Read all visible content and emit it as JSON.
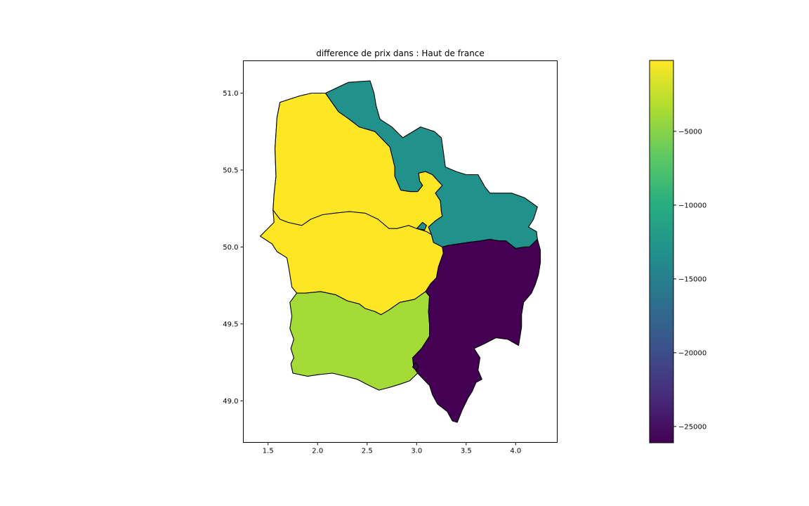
{
  "chart_data": {
    "type": "choropleth",
    "title": "difference de prix dans : Haut de france",
    "xlim": [
      1.25,
      4.42
    ],
    "ylim": [
      48.73,
      51.21
    ],
    "x_ticks": [
      "1.5",
      "2.0",
      "2.5",
      "3.0",
      "3.5",
      "4.0"
    ],
    "y_ticks": [
      "49.0",
      "49.5",
      "50.0",
      "50.5",
      "51.0"
    ],
    "colorbar": {
      "colormap": "viridis",
      "range": [
        -26100,
        -200
      ],
      "ticks": [
        "−5000",
        "−10000",
        "−15000",
        "−20000",
        "−25000"
      ],
      "tick_values": [
        -5000,
        -10000,
        -15000,
        -20000,
        -25000
      ]
    },
    "regions": [
      {
        "color": "#fde725",
        "value": -300,
        "polygon": [
          [
            2.08,
            51.0
          ],
          [
            2.21,
            50.88
          ],
          [
            2.32,
            50.83
          ],
          [
            2.42,
            50.78
          ],
          [
            2.58,
            50.75
          ],
          [
            2.73,
            50.65
          ],
          [
            2.78,
            50.52
          ],
          [
            2.78,
            50.46
          ],
          [
            2.84,
            50.37
          ],
          [
            2.93,
            50.36
          ],
          [
            3.01,
            50.36
          ],
          [
            3.06,
            50.4
          ],
          [
            3.03,
            50.43
          ],
          [
            3.02,
            50.48
          ],
          [
            3.09,
            50.49
          ],
          [
            3.16,
            50.47
          ],
          [
            3.23,
            50.42
          ],
          [
            3.26,
            50.4
          ],
          [
            3.19,
            50.35
          ],
          [
            3.24,
            50.3
          ],
          [
            3.25,
            50.23
          ],
          [
            3.26,
            50.2
          ],
          [
            3.19,
            50.17
          ],
          [
            3.12,
            50.13
          ],
          [
            3.15,
            50.08
          ],
          [
            3.17,
            50.03
          ],
          [
            3.26,
            50.0
          ],
          [
            3.27,
            49.96
          ],
          [
            3.22,
            49.87
          ],
          [
            3.2,
            49.8
          ],
          [
            3.14,
            49.76
          ],
          [
            3.09,
            49.71
          ],
          [
            2.98,
            49.66
          ],
          [
            2.83,
            49.64
          ],
          [
            2.72,
            49.59
          ],
          [
            2.64,
            49.56
          ],
          [
            2.58,
            49.58
          ],
          [
            2.48,
            49.6
          ],
          [
            2.42,
            49.63
          ],
          [
            2.3,
            49.65
          ],
          [
            2.18,
            49.69
          ],
          [
            2.03,
            49.71
          ],
          [
            1.88,
            49.7
          ],
          [
            1.79,
            49.7
          ],
          [
            1.74,
            49.74
          ],
          [
            1.71,
            49.86
          ],
          [
            1.69,
            49.93
          ],
          [
            1.59,
            49.97
          ],
          [
            1.54,
            50.02
          ],
          [
            1.42,
            50.07
          ],
          [
            1.56,
            50.16
          ],
          [
            1.55,
            50.24
          ],
          [
            1.56,
            50.34
          ],
          [
            1.58,
            50.46
          ],
          [
            1.57,
            50.64
          ],
          [
            1.59,
            50.84
          ],
          [
            1.62,
            50.94
          ],
          [
            1.81,
            50.98
          ],
          [
            1.94,
            51.0
          ]
        ]
      },
      {
        "color": "#fde725",
        "value": -300,
        "polygon": [
          [
            1.55,
            50.24
          ],
          [
            1.62,
            50.18
          ],
          [
            1.7,
            50.16
          ],
          [
            1.84,
            50.14
          ],
          [
            1.93,
            50.18
          ],
          [
            2.05,
            50.21
          ],
          [
            2.17,
            50.22
          ],
          [
            2.32,
            50.23
          ],
          [
            2.48,
            50.22
          ],
          [
            2.61,
            50.18
          ],
          [
            2.72,
            50.12
          ],
          [
            2.8,
            50.12
          ],
          [
            2.92,
            50.14
          ],
          [
            3.0,
            50.12
          ],
          [
            3.1,
            50.1
          ],
          [
            3.15,
            50.08
          ],
          [
            3.12,
            50.13
          ],
          [
            3.19,
            50.17
          ],
          [
            3.26,
            50.2
          ],
          [
            3.25,
            50.23
          ],
          [
            3.24,
            50.3
          ],
          [
            3.19,
            50.35
          ],
          [
            3.26,
            50.4
          ],
          [
            3.23,
            50.42
          ],
          [
            3.16,
            50.47
          ],
          [
            3.09,
            50.49
          ],
          [
            3.02,
            50.48
          ],
          [
            3.03,
            50.43
          ],
          [
            3.06,
            50.4
          ],
          [
            3.01,
            50.36
          ],
          [
            2.93,
            50.36
          ],
          [
            2.84,
            50.37
          ],
          [
            2.78,
            50.46
          ],
          [
            2.78,
            50.52
          ],
          [
            2.73,
            50.65
          ],
          [
            2.58,
            50.75
          ],
          [
            2.42,
            50.78
          ],
          [
            2.32,
            50.83
          ],
          [
            2.21,
            50.88
          ],
          [
            2.08,
            51.0
          ],
          [
            1.94,
            51.0
          ],
          [
            1.81,
            50.98
          ],
          [
            1.62,
            50.94
          ],
          [
            1.59,
            50.84
          ],
          [
            1.57,
            50.64
          ],
          [
            1.58,
            50.46
          ],
          [
            1.56,
            50.34
          ]
        ]
      },
      {
        "color": "#21918c",
        "value": -15900,
        "polygon": [
          [
            2.08,
            51.0
          ],
          [
            2.31,
            51.07
          ],
          [
            2.53,
            51.08
          ],
          [
            2.57,
            51.0
          ],
          [
            2.59,
            50.92
          ],
          [
            2.63,
            50.83
          ],
          [
            2.75,
            50.78
          ],
          [
            2.86,
            50.71
          ],
          [
            3.04,
            50.78
          ],
          [
            3.18,
            50.75
          ],
          [
            3.25,
            50.71
          ],
          [
            3.27,
            50.62
          ],
          [
            3.29,
            50.52
          ],
          [
            3.4,
            50.49
          ],
          [
            3.5,
            50.47
          ],
          [
            3.62,
            50.47
          ],
          [
            3.69,
            50.39
          ],
          [
            3.74,
            50.35
          ],
          [
            3.85,
            50.35
          ],
          [
            3.96,
            50.35
          ],
          [
            4.09,
            50.32
          ],
          [
            4.22,
            50.26
          ],
          [
            4.18,
            50.18
          ],
          [
            4.13,
            50.13
          ],
          [
            4.21,
            50.1
          ],
          [
            4.22,
            50.05
          ],
          [
            4.14,
            50.0
          ],
          [
            4.09,
            50.0
          ],
          [
            4.0,
            49.99
          ],
          [
            3.9,
            50.04
          ],
          [
            3.83,
            50.04
          ],
          [
            3.74,
            50.05
          ],
          [
            3.65,
            50.04
          ],
          [
            3.52,
            50.03
          ],
          [
            3.42,
            50.02
          ],
          [
            3.32,
            50.01
          ],
          [
            3.26,
            50.0
          ],
          [
            3.17,
            50.03
          ],
          [
            3.15,
            50.08
          ],
          [
            3.12,
            50.13
          ],
          [
            3.19,
            50.17
          ],
          [
            3.26,
            50.2
          ],
          [
            3.25,
            50.23
          ],
          [
            3.24,
            50.3
          ],
          [
            3.19,
            50.35
          ],
          [
            3.26,
            50.4
          ],
          [
            3.23,
            50.42
          ],
          [
            3.16,
            50.47
          ],
          [
            3.09,
            50.49
          ],
          [
            3.02,
            50.48
          ],
          [
            3.03,
            50.43
          ],
          [
            3.06,
            50.4
          ],
          [
            3.01,
            50.36
          ],
          [
            2.93,
            50.36
          ],
          [
            2.84,
            50.37
          ],
          [
            2.78,
            50.46
          ],
          [
            2.78,
            50.52
          ],
          [
            2.73,
            50.65
          ],
          [
            2.58,
            50.75
          ],
          [
            2.42,
            50.78
          ],
          [
            2.32,
            50.83
          ],
          [
            2.21,
            50.88
          ]
        ]
      },
      {
        "color": "#21918c",
        "value": -15900,
        "polygon": [
          [
            3.0,
            50.12
          ],
          [
            3.06,
            50.16
          ],
          [
            3.1,
            50.14
          ],
          [
            3.08,
            50.11
          ]
        ]
      },
      {
        "color": "#a5db36",
        "value": -4300,
        "polygon": [
          [
            1.79,
            49.7
          ],
          [
            1.88,
            49.7
          ],
          [
            2.03,
            49.71
          ],
          [
            2.18,
            49.69
          ],
          [
            2.3,
            49.65
          ],
          [
            2.42,
            49.63
          ],
          [
            2.48,
            49.6
          ],
          [
            2.58,
            49.58
          ],
          [
            2.64,
            49.56
          ],
          [
            2.72,
            49.59
          ],
          [
            2.83,
            49.64
          ],
          [
            2.98,
            49.66
          ],
          [
            3.09,
            49.71
          ],
          [
            3.13,
            49.68
          ],
          [
            3.12,
            49.58
          ],
          [
            3.13,
            49.5
          ],
          [
            3.13,
            49.42
          ],
          [
            3.05,
            49.34
          ],
          [
            2.96,
            49.28
          ],
          [
            2.97,
            49.22
          ],
          [
            3.01,
            49.18
          ],
          [
            2.93,
            49.13
          ],
          [
            2.84,
            49.11
          ],
          [
            2.74,
            49.09
          ],
          [
            2.62,
            49.07
          ],
          [
            2.52,
            49.1
          ],
          [
            2.4,
            49.14
          ],
          [
            2.28,
            49.16
          ],
          [
            2.15,
            49.18
          ],
          [
            2.0,
            49.17
          ],
          [
            1.9,
            49.16
          ],
          [
            1.75,
            49.18
          ],
          [
            1.73,
            49.24
          ],
          [
            1.76,
            49.28
          ],
          [
            1.73,
            49.34
          ],
          [
            1.76,
            49.4
          ],
          [
            1.72,
            49.47
          ],
          [
            1.74,
            49.55
          ],
          [
            1.72,
            49.64
          ]
        ]
      },
      {
        "color": "#440154",
        "value": -26100,
        "polygon": [
          [
            3.26,
            50.0
          ],
          [
            3.32,
            50.01
          ],
          [
            3.42,
            50.02
          ],
          [
            3.52,
            50.03
          ],
          [
            3.65,
            50.04
          ],
          [
            3.74,
            50.05
          ],
          [
            3.83,
            50.04
          ],
          [
            3.9,
            50.04
          ],
          [
            4.0,
            49.99
          ],
          [
            4.09,
            50.0
          ],
          [
            4.14,
            50.0
          ],
          [
            4.22,
            50.05
          ],
          [
            4.25,
            49.98
          ],
          [
            4.25,
            49.9
          ],
          [
            4.23,
            49.82
          ],
          [
            4.2,
            49.76
          ],
          [
            4.16,
            49.7
          ],
          [
            4.08,
            49.64
          ],
          [
            4.06,
            49.56
          ],
          [
            4.06,
            49.48
          ],
          [
            4.03,
            49.36
          ],
          [
            3.92,
            49.4
          ],
          [
            3.8,
            49.41
          ],
          [
            3.68,
            49.37
          ],
          [
            3.58,
            49.34
          ],
          [
            3.64,
            49.28
          ],
          [
            3.62,
            49.2
          ],
          [
            3.66,
            49.14
          ],
          [
            3.6,
            49.12
          ],
          [
            3.56,
            49.06
          ],
          [
            3.52,
            49.02
          ],
          [
            3.46,
            48.94
          ],
          [
            3.41,
            48.86
          ],
          [
            3.36,
            48.87
          ],
          [
            3.31,
            48.93
          ],
          [
            3.21,
            48.98
          ],
          [
            3.16,
            49.04
          ],
          [
            3.13,
            49.1
          ],
          [
            3.01,
            49.18
          ],
          [
            2.97,
            49.22
          ],
          [
            2.96,
            49.28
          ],
          [
            3.05,
            49.34
          ],
          [
            3.13,
            49.42
          ],
          [
            3.13,
            49.5
          ],
          [
            3.12,
            49.58
          ],
          [
            3.13,
            49.68
          ],
          [
            3.09,
            49.71
          ],
          [
            3.14,
            49.76
          ],
          [
            3.2,
            49.8
          ],
          [
            3.22,
            49.87
          ],
          [
            3.27,
            49.96
          ]
        ]
      },
      {
        "color": "#440154",
        "value": -26100,
        "polygon": [
          [
            2.96,
            49.22
          ],
          [
            2.99,
            49.25
          ],
          [
            3.02,
            49.22
          ],
          [
            2.99,
            49.2
          ]
        ]
      }
    ]
  }
}
